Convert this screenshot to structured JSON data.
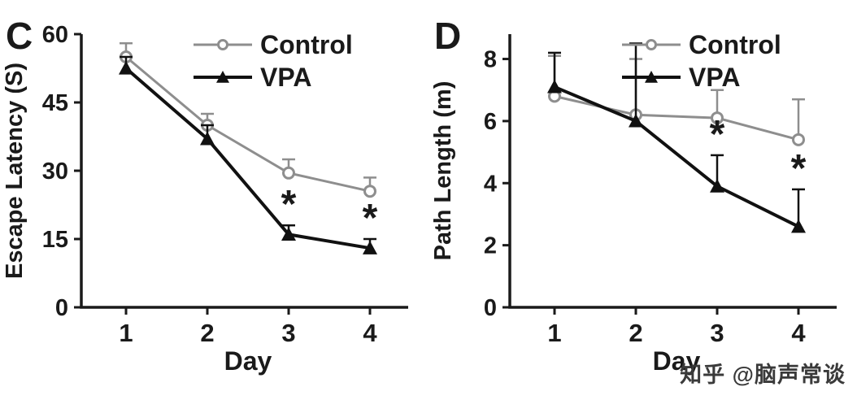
{
  "watermark": "知乎 @脑声常谈",
  "chart_data": [
    {
      "type": "line",
      "panel_label": "C",
      "xlabel": "Day",
      "ylabel": "Escape Latency (S)",
      "categories": [
        "1",
        "2",
        "3",
        "4"
      ],
      "ylim": [
        0,
        60
      ],
      "yticks": [
        0,
        15,
        30,
        45,
        60
      ],
      "grid": false,
      "legend_position": "top-right-inside",
      "axis_color": "#1a1a1a",
      "error_bars": "upward",
      "series": [
        {
          "name": "Control",
          "color": "#8e8e8e",
          "marker": "circle-open",
          "values": [
            55,
            40,
            29.5,
            25.5
          ],
          "errors_up": [
            3,
            2.5,
            3,
            3
          ]
        },
        {
          "name": "VPA",
          "color": "#111111",
          "marker": "triangle-filled",
          "values": [
            52.5,
            37,
            16,
            13
          ],
          "errors_up": [
            2.5,
            3,
            2,
            2
          ]
        }
      ],
      "annotations": [
        {
          "series": "VPA",
          "day": 3,
          "text": "*"
        },
        {
          "series": "VPA",
          "day": 4,
          "text": "*"
        }
      ]
    },
    {
      "type": "line",
      "panel_label": "D",
      "xlabel": "Day",
      "ylabel": "Path Length (m)",
      "categories": [
        "1",
        "2",
        "3",
        "4"
      ],
      "ylim": [
        0,
        8.8
      ],
      "yticks": [
        0,
        2,
        4,
        6,
        8
      ],
      "grid": false,
      "legend_position": "top-right-inside",
      "axis_color": "#1a1a1a",
      "error_bars": "upward",
      "series": [
        {
          "name": "Control",
          "color": "#8e8e8e",
          "marker": "circle-open",
          "values": [
            6.8,
            6.2,
            6.1,
            5.4
          ],
          "errors_up": [
            1.3,
            1.8,
            0.9,
            1.3
          ]
        },
        {
          "name": "VPA",
          "color": "#111111",
          "marker": "triangle-filled",
          "values": [
            7.1,
            6.0,
            3.9,
            2.6
          ],
          "errors_up": [
            1.1,
            2.5,
            1.0,
            1.2
          ]
        }
      ],
      "annotations": [
        {
          "series": "VPA",
          "day": 3,
          "text": "*"
        },
        {
          "series": "VPA",
          "day": 4,
          "text": "*"
        }
      ]
    }
  ]
}
